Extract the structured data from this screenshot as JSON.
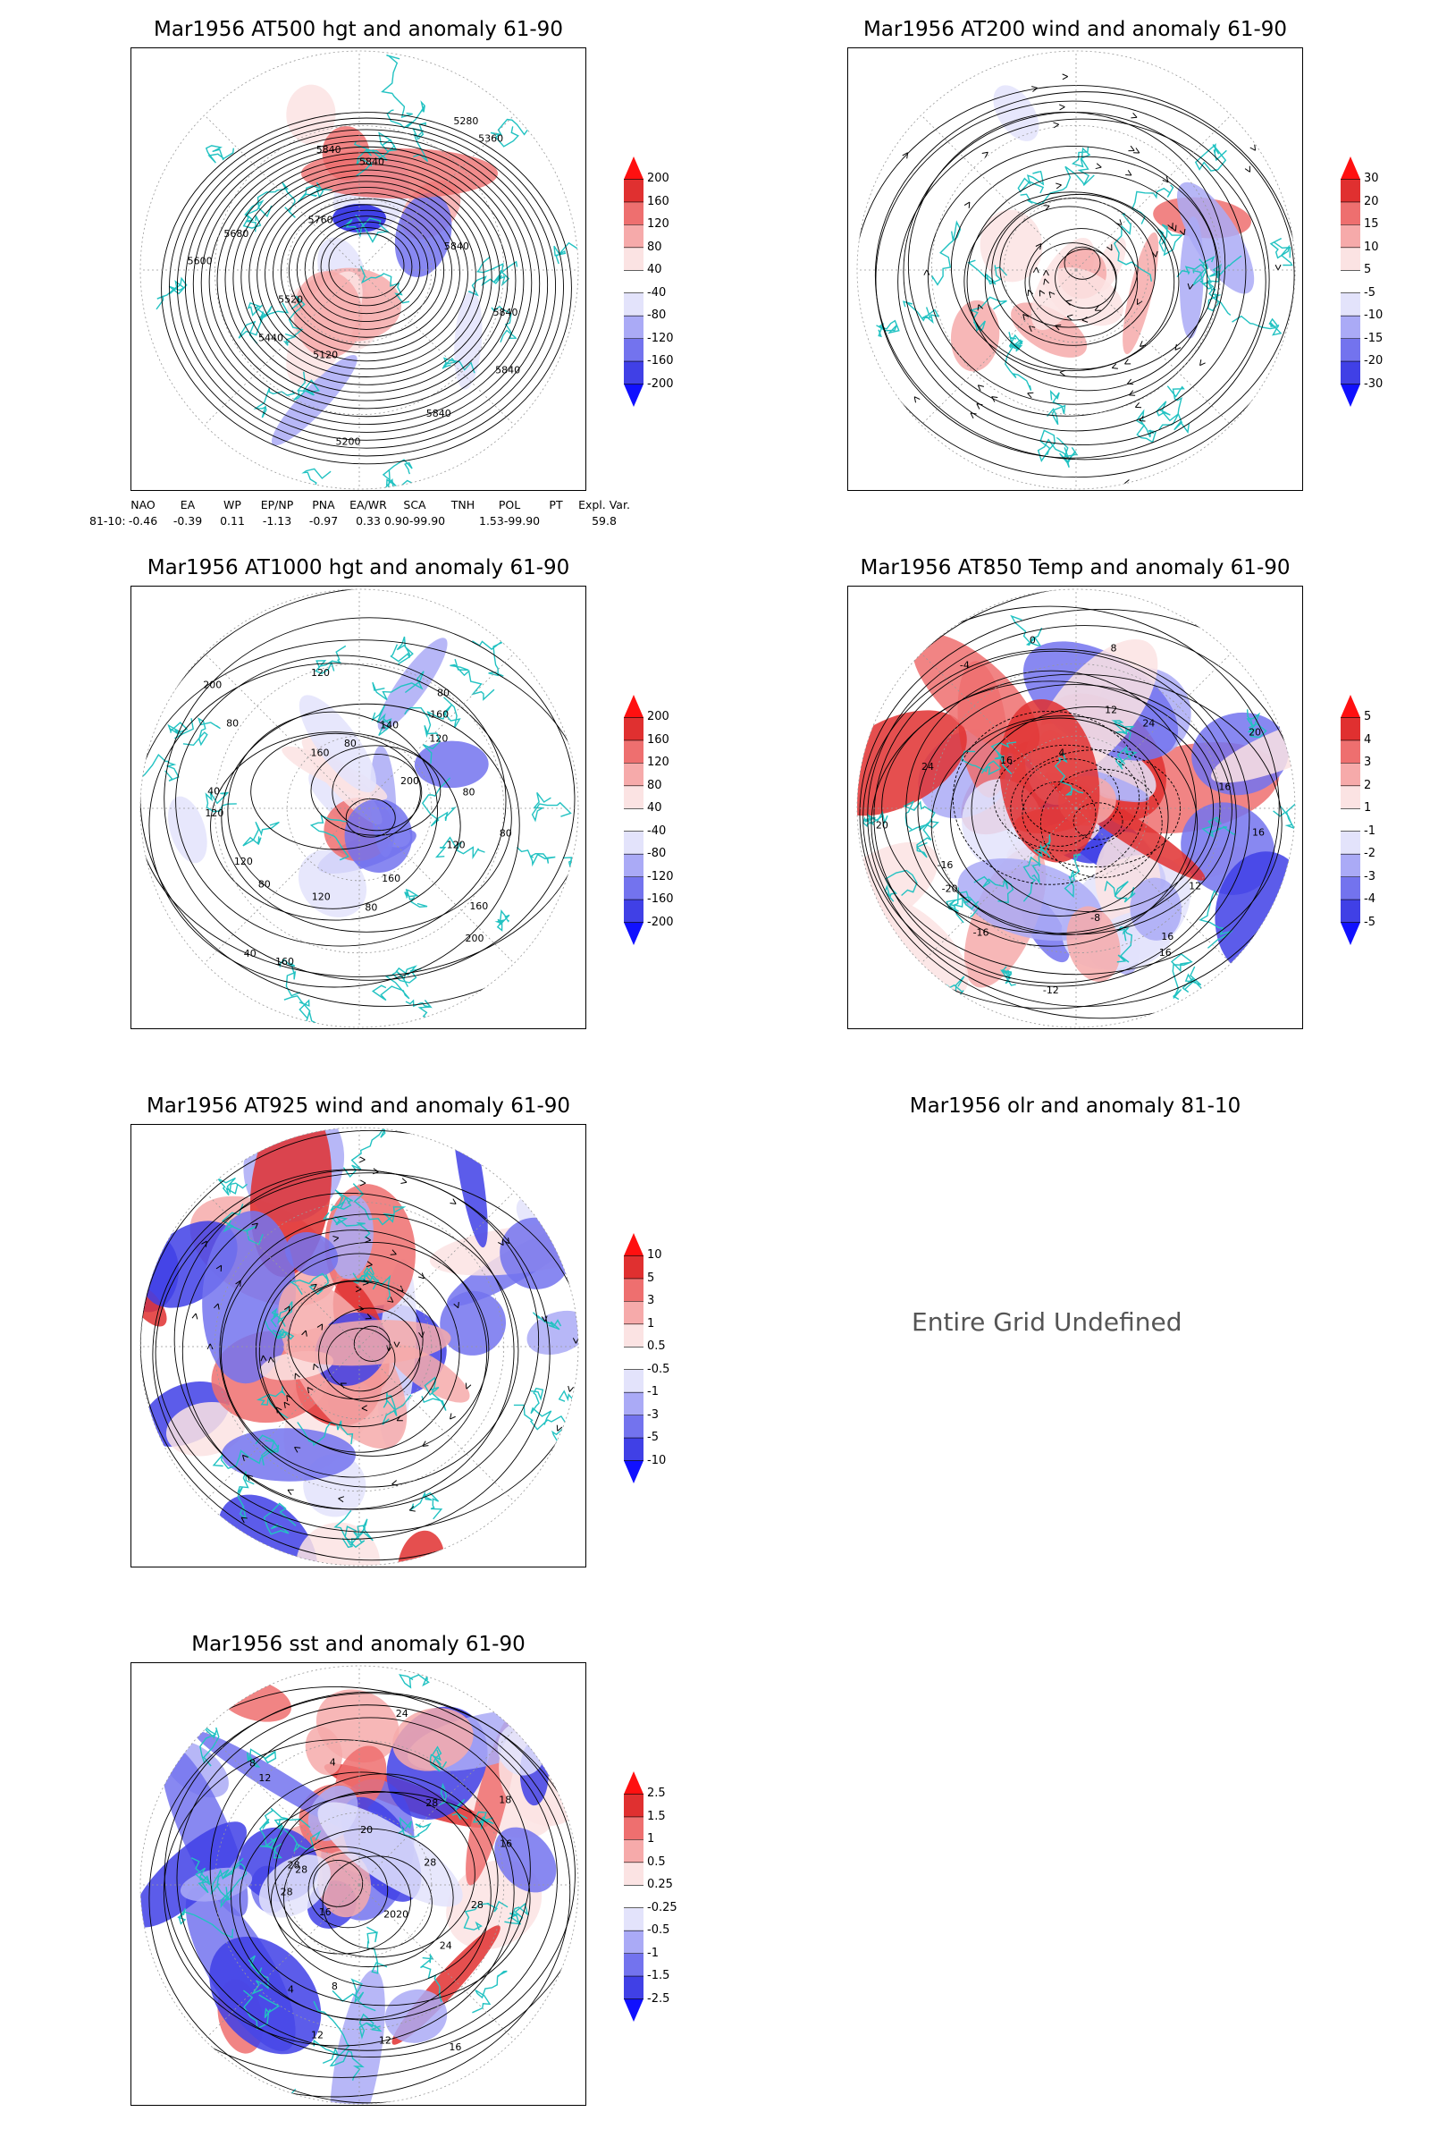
{
  "panels": [
    {
      "title": "Mar1956 AT500 hgt and anomaly 61-90",
      "style": "hgt500",
      "contour_labels": [
        "5840",
        "5840",
        "5840",
        "5200",
        "5120",
        "5440",
        "5520",
        "5600",
        "5680",
        "5760",
        "5840",
        "5840",
        "5280",
        "5360",
        "5840"
      ],
      "colorbar": [
        "200",
        "160",
        "120",
        "80",
        "40",
        "-40",
        "-80",
        "-120",
        "-160",
        "-200"
      ]
    },
    {
      "title": "Mar1956 AT200 wind and anomaly 61-90",
      "style": "wind200",
      "contour_labels": [],
      "colorbar": [
        "30",
        "20",
        "15",
        "10",
        "5",
        "-5",
        "-10",
        "-15",
        "-20",
        "-30"
      ]
    },
    {
      "title": "Mar1956 AT1000 hgt and anomaly 61-90",
      "style": "hgt1000",
      "contour_labels": [
        "80",
        "120",
        "160",
        "200",
        "160",
        "80",
        "120",
        "160",
        "40",
        "80",
        "120",
        "120",
        "40",
        "80",
        "200",
        "160",
        "120",
        "80",
        "140",
        "80",
        "160",
        "120",
        "200",
        "80"
      ],
      "colorbar": [
        "200",
        "160",
        "120",
        "80",
        "40",
        "-40",
        "-80",
        "-120",
        "-160",
        "-200"
      ]
    },
    {
      "title": "Mar1956 AT850 Temp and anomaly 61-90",
      "style": "temp850",
      "contour_labels": [
        "16",
        "12",
        "16",
        "16",
        "-8",
        "-12",
        "-16",
        "-20",
        "-16",
        "20",
        "24",
        "16",
        "-4",
        "0",
        "4",
        "8",
        "12",
        "24",
        "20",
        "16"
      ],
      "colorbar": [
        "5",
        "4",
        "3",
        "2",
        "1",
        "-1",
        "-2",
        "-3",
        "-4",
        "-5"
      ]
    },
    {
      "title": "Mar1956 AT925 wind and anomaly 61-90",
      "style": "wind925",
      "contour_labels": [],
      "colorbar": [
        "10",
        "5",
        "3",
        "1",
        "0.5",
        "-0.5",
        "-1",
        "-3",
        "-5",
        "-10"
      ]
    },
    {
      "title": "Mar1956 olr and anomaly 81-10",
      "style": "undef",
      "message": "Entire Grid Undefined"
    },
    {
      "title": "Mar1956 sst and anomaly 61-90",
      "style": "sst",
      "contour_labels": [
        "28",
        "24",
        "2020",
        "16",
        "12",
        "12",
        "8",
        "4",
        "16",
        "28",
        "28",
        "28",
        "12",
        "8",
        "4",
        "20",
        "24",
        "28",
        "18",
        "16",
        "28"
      ],
      "colorbar": [
        "2.5",
        "1.5",
        "1",
        "0.5",
        "0.25",
        "-0.25",
        "-0.5",
        "-1",
        "-1.5",
        "-2.5"
      ]
    }
  ],
  "teleconnection": {
    "headers": [
      "NAO",
      "EA",
      "WP",
      "EP/NP",
      "PNA",
      "EA/WR",
      "SCA",
      "TNH",
      "POL",
      "PT",
      "Expl. Var."
    ],
    "row_label": "81-10:",
    "values": [
      "-0.46",
      "-0.39",
      "0.11",
      "-1.13",
      "-0.97",
      "0.33",
      "0.90-99.90",
      "",
      "1.53-99.90",
      "",
      "59.8"
    ]
  },
  "colors": {
    "coast": "#22c2c2",
    "pos": [
      "#fbe3e3",
      "#f6aaaa",
      "#ee6f6f",
      "#e03030",
      "#ff1010"
    ],
    "neg": [
      "#e3e3fb",
      "#aaaaf6",
      "#7373ee",
      "#4040e6",
      "#1010ff"
    ]
  }
}
